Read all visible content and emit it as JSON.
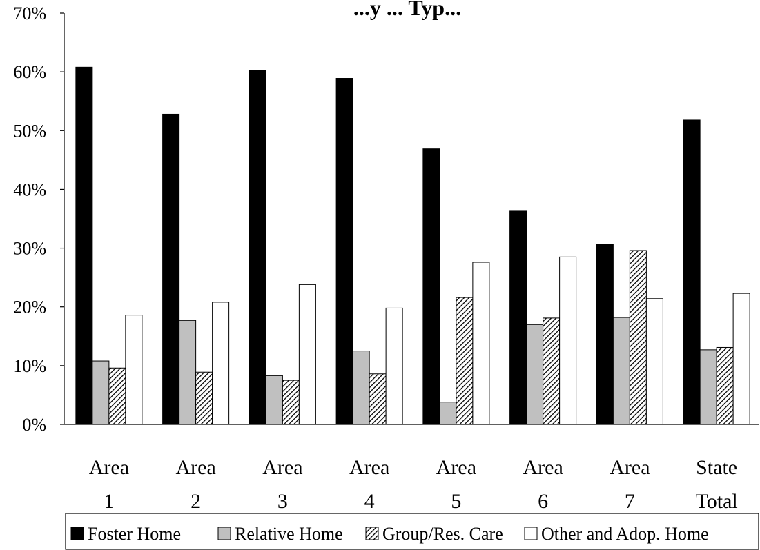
{
  "chart_data": {
    "type": "bar",
    "title": "...y ... Typ...",
    "categories": [
      [
        "Area",
        "1"
      ],
      [
        "Area",
        "2"
      ],
      [
        "Area",
        "3"
      ],
      [
        "Area",
        "4"
      ],
      [
        "Area",
        "5"
      ],
      [
        "Area",
        "6"
      ],
      [
        "Area",
        "7"
      ],
      [
        "State",
        "Total"
      ]
    ],
    "series": [
      {
        "name": "Foster Home",
        "values": [
          60.8,
          52.8,
          60.3,
          58.9,
          46.9,
          36.3,
          30.6,
          51.8
        ]
      },
      {
        "name": "Relative Home",
        "values": [
          10.8,
          17.7,
          8.3,
          12.5,
          3.8,
          17.0,
          18.2,
          12.7
        ]
      },
      {
        "name": "Group/Res. Care",
        "values": [
          9.6,
          8.9,
          7.5,
          8.6,
          21.6,
          18.1,
          29.6,
          13.1
        ]
      },
      {
        "name": "Other and Adop. Home",
        "values": [
          18.6,
          20.8,
          23.8,
          19.8,
          27.6,
          28.5,
          21.4,
          22.3
        ]
      }
    ],
    "ylim": [
      0,
      70
    ],
    "yticks": [
      "0%",
      "10%",
      "20%",
      "30%",
      "40%",
      "50%",
      "60%",
      "70%"
    ],
    "legend_position": "bottom",
    "grid": false,
    "colors": {
      "Foster Home": "#000000",
      "Relative Home": "#c0c0c0",
      "Group/Res. Care": "hatched",
      "Other and Adop. Home": "#ffffff"
    }
  }
}
